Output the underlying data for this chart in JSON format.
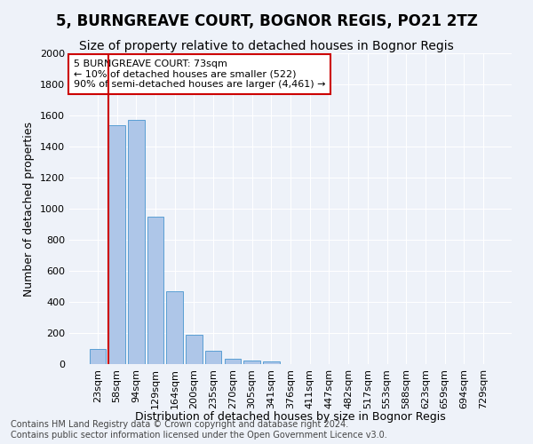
{
  "title": "5, BURNGREAVE COURT, BOGNOR REGIS, PO21 2TZ",
  "subtitle": "Size of property relative to detached houses in Bognor Regis",
  "xlabel": "Distribution of detached houses by size in Bognor Regis",
  "ylabel": "Number of detached properties",
  "categories": [
    "23sqm",
    "58sqm",
    "94sqm",
    "129sqm",
    "164sqm",
    "200sqm",
    "235sqm",
    "270sqm",
    "305sqm",
    "341sqm",
    "376sqm",
    "411sqm",
    "447sqm",
    "482sqm",
    "517sqm",
    "553sqm",
    "588sqm",
    "623sqm",
    "659sqm",
    "694sqm",
    "729sqm"
  ],
  "values": [
    100,
    1540,
    1570,
    950,
    470,
    190,
    85,
    35,
    25,
    15,
    0,
    0,
    0,
    0,
    0,
    0,
    0,
    0,
    0,
    0,
    0
  ],
  "bar_color": "#aec6e8",
  "bar_edge_color": "#5a9fd4",
  "vline_color": "#cc0000",
  "vline_x_index": 0.575,
  "annotation_text": "5 BURNGREAVE COURT: 73sqm\n← 10% of detached houses are smaller (522)\n90% of semi-detached houses are larger (4,461) →",
  "annotation_box_color": "#ffffff",
  "annotation_box_edge_color": "#cc0000",
  "ylim": [
    0,
    2000
  ],
  "yticks": [
    0,
    200,
    400,
    600,
    800,
    1000,
    1200,
    1400,
    1600,
    1800,
    2000
  ],
  "footer_line1": "Contains HM Land Registry data © Crown copyright and database right 2024.",
  "footer_line2": "Contains public sector information licensed under the Open Government Licence v3.0.",
  "title_fontsize": 12,
  "subtitle_fontsize": 10,
  "axis_label_fontsize": 9,
  "tick_fontsize": 8,
  "annotation_fontsize": 8,
  "footer_fontsize": 7,
  "background_color": "#eef2f9",
  "plot_background_color": "#eef2f9",
  "grid_color": "#ffffff"
}
